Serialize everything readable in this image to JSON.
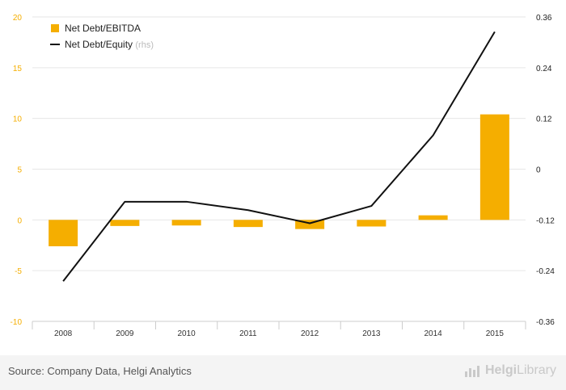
{
  "chart_data": {
    "type": "bar+line",
    "categories": [
      "2008",
      "2009",
      "2010",
      "2011",
      "2012",
      "2013",
      "2014",
      "2015"
    ],
    "series": [
      {
        "name": "Net Debt/EBITDA",
        "type": "bar",
        "axis": "left",
        "color": "#f5ae00",
        "values": [
          -2.6,
          -0.6,
          -0.55,
          -0.7,
          -0.9,
          -0.65,
          0.45,
          10.4
        ]
      },
      {
        "name": "Net Debt/Equity",
        "axis_note": "(rhs)",
        "type": "line",
        "axis": "right",
        "color": "#111111",
        "values": [
          -0.265,
          -0.077,
          -0.077,
          -0.097,
          -0.128,
          -0.087,
          0.08,
          0.325
        ]
      }
    ],
    "left_axis": {
      "ylim": [
        -10,
        20
      ],
      "ticks": [
        "20",
        "15",
        "10",
        "5",
        "0",
        "-5",
        "-10"
      ],
      "tick_values": [
        20,
        15,
        10,
        5,
        0,
        -5,
        -10
      ],
      "tick_color": "#f5ae00"
    },
    "right_axis": {
      "ylim": [
        -0.36,
        0.36
      ],
      "ticks": [
        "0.36",
        "0.24",
        "0.12",
        "0",
        "-0.12",
        "-0.24",
        "-0.36"
      ],
      "tick_values": [
        0.36,
        0.24,
        0.12,
        0,
        -0.12,
        -0.24,
        -0.36
      ]
    },
    "grid": true,
    "legend_position": "top-left"
  },
  "footer": {
    "source": "Source: Company Data, Helgi Analytics",
    "brand_bold": "Helgi",
    "brand_regular": "Library",
    "brand_icon": "chart-logo-icon"
  }
}
